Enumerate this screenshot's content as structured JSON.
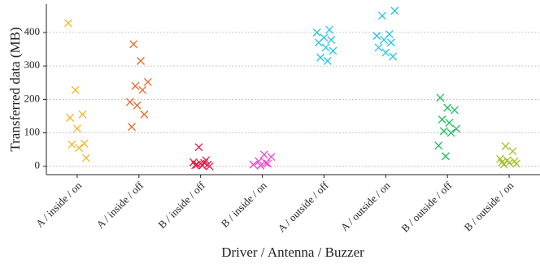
{
  "chart_data": {
    "type": "strip",
    "ylabel": "Transferred data (MB)",
    "xlabel": "Driver / Antenna / Buzzer",
    "categories": [
      "A / inside / on",
      "A / inside / off",
      "B / inside / off",
      "B / inside / on",
      "A / outside / off",
      "A / outside / on",
      "B / outside / off",
      "B / outside / on"
    ],
    "colors": [
      "#f5b51e",
      "#e8682a",
      "#e61e4a",
      "#ee45cf",
      "#25c3e3",
      "#25c3e3",
      "#18bf5c",
      "#a3c225"
    ],
    "values": [
      [
        428,
        228,
        155,
        145,
        113,
        68,
        65,
        55,
        25
      ],
      [
        365,
        315,
        252,
        240,
        228,
        192,
        182,
        155,
        118
      ],
      [
        57,
        18,
        12,
        8,
        5,
        3,
        2,
        0,
        5,
        10
      ],
      [
        35,
        28,
        15,
        10,
        5,
        2,
        8
      ],
      [
        408,
        400,
        385,
        378,
        370,
        355,
        345,
        325,
        315
      ],
      [
        465,
        450,
        395,
        390,
        378,
        370,
        355,
        340,
        328
      ],
      [
        205,
        175,
        168,
        140,
        130,
        112,
        105,
        100,
        62,
        30
      ],
      [
        60,
        45,
        22,
        18,
        15,
        12,
        10,
        8,
        5
      ]
    ],
    "ylim": [
      -25,
      485
    ],
    "yticks": [
      0,
      100,
      200,
      300,
      400
    ],
    "grid": true
  }
}
